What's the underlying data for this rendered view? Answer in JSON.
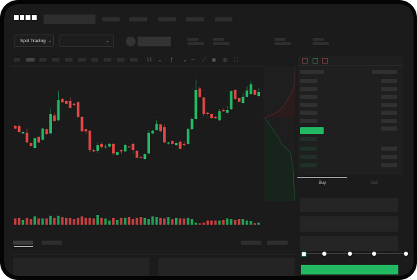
{
  "brand": {
    "logo": "OKX"
  },
  "header": {
    "market_selector": "Spot Trading",
    "pair_selector": ""
  },
  "toolbar": {
    "icons": [
      "chart-type-icon",
      "chevron-down-icon",
      "indicator-icon",
      "chevron-down-icon",
      "line-icon",
      "ruler-icon",
      "camera-icon",
      "settings-icon",
      "fullscreen-icon"
    ]
  },
  "order_book": {
    "view_icons": [
      "both-sides-icon",
      "bids-only-icon",
      "asks-only-icon"
    ]
  },
  "trade": {
    "tabs": [
      {
        "label": "Buy",
        "active": true
      },
      {
        "label": "Sell",
        "active": false
      }
    ],
    "leverage_stops": 5,
    "leverage_selected": 0
  },
  "colors": {
    "up": "#22b962",
    "down": "#e04646",
    "background": "#1b1b1b",
    "accent": "#22b962"
  },
  "chart_data": {
    "type": "candlestick",
    "fields": [
      "open",
      "close",
      "high",
      "low"
    ],
    "candles": [
      [
        68,
        64,
        69,
        63
      ],
      [
        68,
        59,
        70,
        58
      ],
      [
        57,
        59,
        60,
        56
      ],
      [
        58,
        44,
        64,
        43
      ],
      [
        43,
        39,
        44,
        38
      ],
      [
        36,
        50,
        51,
        35
      ],
      [
        52,
        44,
        53,
        43
      ],
      [
        48,
        64,
        65,
        47
      ],
      [
        63,
        56,
        64,
        55
      ],
      [
        57,
        85,
        93,
        56
      ],
      [
        83,
        75,
        87,
        74
      ],
      [
        76,
        105,
        118,
        75
      ],
      [
        107,
        102,
        108,
        101
      ],
      [
        104,
        100,
        105,
        99
      ],
      [
        104,
        94,
        109,
        93
      ],
      [
        100,
        98,
        101,
        97
      ],
      [
        102,
        81,
        104,
        80
      ],
      [
        81,
        60,
        82,
        59
      ],
      [
        63,
        60,
        64,
        56
      ],
      [
        61,
        33,
        62,
        30
      ],
      [
        33,
        31,
        35,
        30
      ],
      [
        32,
        40,
        44,
        29
      ],
      [
        42,
        37,
        44,
        35
      ],
      [
        37.5,
        38,
        41,
        35
      ],
      [
        38,
        42,
        43,
        37
      ],
      [
        42,
        28,
        43,
        25
      ],
      [
        26,
        30,
        31,
        25
      ],
      [
        33,
        31,
        34,
        27
      ],
      [
        31,
        40,
        42,
        30
      ],
      [
        38,
        37,
        39,
        36
      ],
      [
        42,
        33,
        43,
        28
      ],
      [
        32,
        22,
        33,
        21
      ],
      [
        23,
        22,
        24,
        21
      ],
      [
        20,
        27,
        28,
        19
      ],
      [
        28,
        58,
        62,
        27
      ],
      [
        57,
        61,
        62,
        56
      ],
      [
        62,
        71,
        76,
        61
      ],
      [
        70,
        60,
        71,
        59
      ],
      [
        66,
        44,
        70,
        43
      ],
      [
        43,
        43.5,
        45,
        41
      ],
      [
        46,
        42,
        47,
        41
      ],
      [
        40,
        43,
        44,
        39
      ],
      [
        45,
        35,
        47,
        34
      ],
      [
        42,
        40,
        45,
        39
      ],
      [
        42,
        63,
        65,
        41
      ],
      [
        63,
        78,
        80,
        62
      ],
      [
        78,
        120,
        135,
        77
      ],
      [
        122,
        110,
        124,
        108
      ],
      [
        109,
        85,
        110,
        82
      ],
      [
        87,
        85,
        88,
        83
      ],
      [
        85,
        79,
        86,
        78
      ],
      [
        81,
        79,
        82,
        78
      ],
      [
        76,
        89,
        92,
        75
      ],
      [
        91,
        89,
        94,
        88
      ],
      [
        87,
        91,
        97,
        86
      ],
      [
        92,
        118,
        119,
        91
      ],
      [
        120,
        107,
        121,
        106
      ],
      [
        108,
        103,
        109,
        102
      ],
      [
        101,
        110,
        116,
        100
      ],
      [
        110,
        119,
        125,
        109
      ],
      [
        114,
        128,
        132,
        113
      ],
      [
        120,
        113,
        121,
        112
      ],
      [
        111,
        117,
        123,
        110
      ]
    ],
    "volume": [
      9,
      10,
      7,
      10,
      8,
      12,
      9,
      9,
      9,
      13,
      10,
      13,
      11,
      10,
      10,
      8,
      10,
      12,
      10,
      10,
      9,
      14,
      10,
      9,
      6,
      10,
      7,
      10,
      10,
      11,
      8,
      10,
      11,
      10,
      8,
      12,
      11,
      10,
      9,
      11,
      8,
      10,
      9,
      9,
      10,
      8,
      3,
      2,
      3,
      6,
      6,
      6,
      6,
      7,
      9,
      8,
      7,
      8,
      8,
      6,
      5,
      2,
      3
    ]
  }
}
